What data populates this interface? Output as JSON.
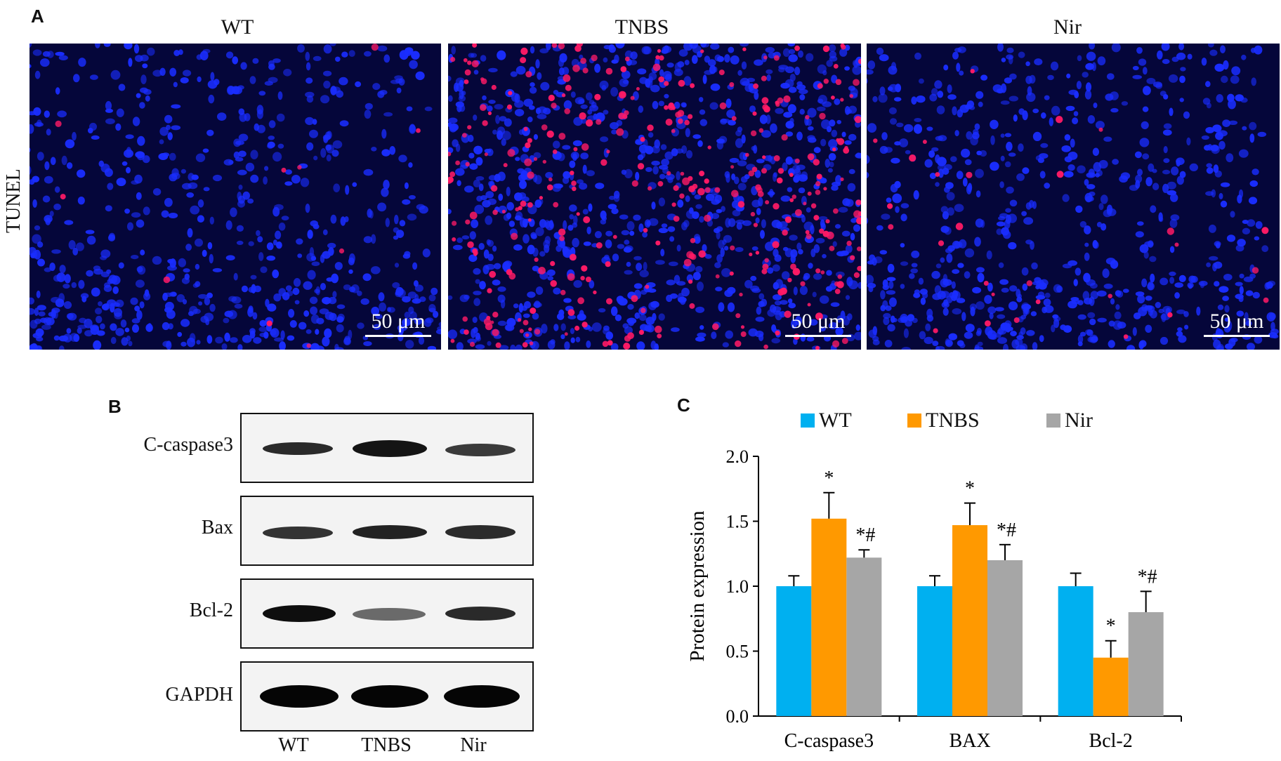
{
  "panel_a": {
    "letter": "A",
    "row_label": "TUNEL",
    "columns": [
      {
        "title": "WT",
        "scale_bar": "50 μm",
        "stain_density": "low"
      },
      {
        "title": "TNBS",
        "scale_bar": "50 μm",
        "stain_density": "high"
      },
      {
        "title": "Nir",
        "scale_bar": "50 μm",
        "stain_density": "medium"
      }
    ],
    "colors": {
      "nuclei": "#1a2dff",
      "tunel_positive": "#ff1a66",
      "background": "#05063a"
    }
  },
  "panel_b": {
    "letter": "B",
    "rows": [
      "C-caspase3",
      "Bax",
      "Bcl-2",
      "GAPDH"
    ],
    "lanes": [
      "WT",
      "TNBS",
      "Nir"
    ]
  },
  "panel_c": {
    "letter": "C",
    "legend": [
      "WT",
      "TNBS",
      "Nir"
    ]
  },
  "chart_data": {
    "type": "bar",
    "categories": [
      "C-caspase3",
      "BAX",
      "Bcl-2"
    ],
    "series": [
      {
        "name": "WT",
        "color": "#00b0f0",
        "values": [
          1.0,
          1.0,
          1.0
        ],
        "errors": [
          0.08,
          0.08,
          0.1
        ],
        "annotations": [
          "",
          "",
          ""
        ]
      },
      {
        "name": "TNBS",
        "color": "#ff9900",
        "values": [
          1.52,
          1.47,
          0.45
        ],
        "errors": [
          0.2,
          0.17,
          0.13
        ],
        "annotations": [
          "*",
          "*",
          "*"
        ]
      },
      {
        "name": "Nir",
        "color": "#a6a6a6",
        "values": [
          1.22,
          1.2,
          0.8
        ],
        "errors": [
          0.06,
          0.12,
          0.16
        ],
        "annotations": [
          "*#",
          "*#",
          "*#"
        ]
      }
    ],
    "ylabel": "Protein expression",
    "xlabel": "",
    "ylim": [
      0,
      2.0
    ],
    "yticks": [
      "0.0",
      "0.5",
      "1.0",
      "1.5",
      "2.0"
    ],
    "grid": false,
    "legend_position": "top"
  }
}
